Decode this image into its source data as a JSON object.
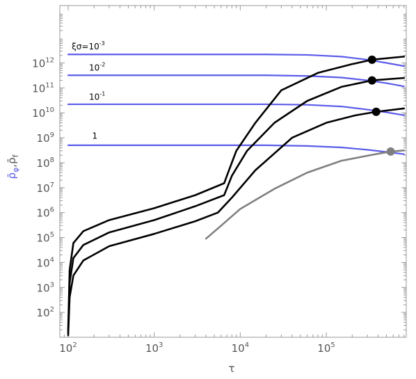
{
  "chart_data": {
    "type": "line",
    "xlabel": "τ",
    "ylabel": {
      "rho_phi": "ρ̄",
      "phi_sub": "φ",
      "sep": ",",
      "rho_f": "ρ̄",
      "f_sub": "f"
    },
    "x_scale": "log",
    "y_scale": "log",
    "xlim": [
      80,
      850000
    ],
    "ylim": [
      10,
      200000000000000
    ],
    "x_ticks": [
      {
        "base": "10",
        "exp": "2",
        "value": 100
      },
      {
        "base": "10",
        "exp": "3",
        "value": 1000
      },
      {
        "base": "10",
        "exp": "4",
        "value": 10000
      },
      {
        "base": "10",
        "exp": "5",
        "value": 100000
      }
    ],
    "y_ticks": [
      {
        "base": "10",
        "exp": "2",
        "value": 100
      },
      {
        "base": "10",
        "exp": "3",
        "value": 1000
      },
      {
        "base": "10",
        "exp": "4",
        "value": 10000
      },
      {
        "base": "10",
        "exp": "5",
        "value": 100000
      },
      {
        "base": "10",
        "exp": "6",
        "value": 1000000
      },
      {
        "base": "10",
        "exp": "7",
        "value": 10000000
      },
      {
        "base": "10",
        "exp": "8",
        "value": 100000000
      },
      {
        "base": "10",
        "exp": "9",
        "value": 1000000000
      },
      {
        "base": "10",
        "exp": "10",
        "value": 10000000000
      },
      {
        "base": "10",
        "exp": "11",
        "value": 100000000000
      },
      {
        "base": "10",
        "exp": "12",
        "value": 1000000000000
      }
    ],
    "colors": {
      "phi": "#5b5bea",
      "f": "#000000",
      "f_gray": "#7f7f7f",
      "frame": "#999999"
    },
    "annotations": [
      {
        "prefix": "ξσ=",
        "base": "10",
        "exp": "-3",
        "x": 110,
        "y": 3500000000000
      },
      {
        "prefix": "",
        "base": "10",
        "exp": "-2",
        "x": 175,
        "y": 500000000000
      },
      {
        "prefix": "",
        "base": "10",
        "exp": "-1",
        "x": 175,
        "y": 33000000000
      },
      {
        "prefix": "",
        "base": "1",
        "exp": "",
        "x": 190,
        "y": 900000000
      }
    ],
    "series": [
      {
        "group": "phi",
        "level": 2200000000000.0,
        "points": [
          [
            100,
            2200000000000.0
          ],
          [
            20000,
            2200000000000.0
          ],
          [
            60000,
            2100000000000.0
          ],
          [
            150000,
            1800000000000.0
          ],
          [
            300000,
            1350000000000.0
          ],
          [
            500000,
            1000000000000.0
          ],
          [
            800000,
            750000000000.0
          ]
        ]
      },
      {
        "group": "phi",
        "level": 320000000000.0,
        "points": [
          [
            100,
            320000000000.0
          ],
          [
            20000,
            320000000000.0
          ],
          [
            60000,
            300000000000.0
          ],
          [
            150000,
            260000000000.0
          ],
          [
            300000,
            200000000000.0
          ],
          [
            500000,
            155000000000.0
          ],
          [
            800000,
            115000000000.0
          ]
        ]
      },
      {
        "group": "phi",
        "level": 22000000000.0,
        "points": [
          [
            100,
            22000000000.0
          ],
          [
            20000,
            22000000000.0
          ],
          [
            60000,
            21000000000.0
          ],
          [
            150000,
            18000000000.0
          ],
          [
            300000,
            13500000000.0
          ],
          [
            500000,
            10500000000.0
          ],
          [
            800000,
            8000000000.0
          ]
        ]
      },
      {
        "group": "phi",
        "level": 500000000.0,
        "points": [
          [
            100,
            500000000.0
          ],
          [
            20000,
            500000000.0
          ],
          [
            60000,
            470000000.0
          ],
          [
            150000,
            410000000.0
          ],
          [
            300000,
            330000000.0
          ],
          [
            500000,
            270000000.0
          ],
          [
            800000,
            220000000.0
          ]
        ]
      },
      {
        "group": "f",
        "points": [
          [
            100,
            20
          ],
          [
            104,
            5000
          ],
          [
            115,
            60000
          ],
          [
            150,
            180000
          ],
          [
            300,
            500000
          ],
          [
            1000,
            1500000
          ],
          [
            3000,
            5000000
          ],
          [
            6500,
            15000000
          ],
          [
            7000,
            30000000
          ],
          [
            9000,
            300000000
          ],
          [
            15000,
            4000000000.0
          ],
          [
            30000,
            80000000000.0
          ],
          [
            80000,
            400000000000.0
          ],
          [
            200000,
            900000000000.0
          ],
          [
            340000,
            1350000000000.0
          ],
          [
            800000,
            1800000000000.0
          ]
        ]
      },
      {
        "group": "f",
        "points": [
          [
            100,
            15
          ],
          [
            104,
            1500
          ],
          [
            115,
            15000
          ],
          [
            150,
            50000
          ],
          [
            300,
            160000
          ],
          [
            1000,
            500000
          ],
          [
            3000,
            1800000
          ],
          [
            6500,
            5000000
          ],
          [
            8000,
            30000000
          ],
          [
            12000,
            300000000
          ],
          [
            25000,
            4000000000.0
          ],
          [
            60000,
            30000000000.0
          ],
          [
            150000,
            110000000000.0
          ],
          [
            340000,
            200000000000.0
          ],
          [
            800000,
            250000000000.0
          ]
        ]
      },
      {
        "group": "f",
        "points": [
          [
            100,
            12
          ],
          [
            104,
            400
          ],
          [
            115,
            3000
          ],
          [
            150,
            12000
          ],
          [
            300,
            45000
          ],
          [
            1000,
            140000
          ],
          [
            3000,
            450000
          ],
          [
            5500,
            1000000
          ],
          [
            8000,
            4000000
          ],
          [
            15000,
            50000000
          ],
          [
            40000,
            1000000000.0
          ],
          [
            100000,
            4000000000.0
          ],
          [
            220000,
            8000000000.0
          ],
          [
            380000,
            11000000000.0
          ],
          [
            800000,
            15000000000.0
          ]
        ]
      },
      {
        "group": "f_gray",
        "points": [
          [
            4000,
            90000
          ],
          [
            6000,
            300000
          ],
          [
            10000,
            1400000
          ],
          [
            25000,
            9000000
          ],
          [
            60000,
            40000000
          ],
          [
            150000,
            120000000
          ],
          [
            350000,
            210000000
          ],
          [
            560000,
            280000000
          ],
          [
            800000,
            310000000
          ]
        ]
      }
    ],
    "markers": [
      {
        "x": 340000,
        "y": 1350000000000.0,
        "color": "black"
      },
      {
        "x": 340000,
        "y": 200000000000.0,
        "color": "black"
      },
      {
        "x": 380000,
        "y": 11000000000.0,
        "color": "black"
      },
      {
        "x": 560000,
        "y": 280000000.0,
        "color": "gray"
      }
    ]
  }
}
